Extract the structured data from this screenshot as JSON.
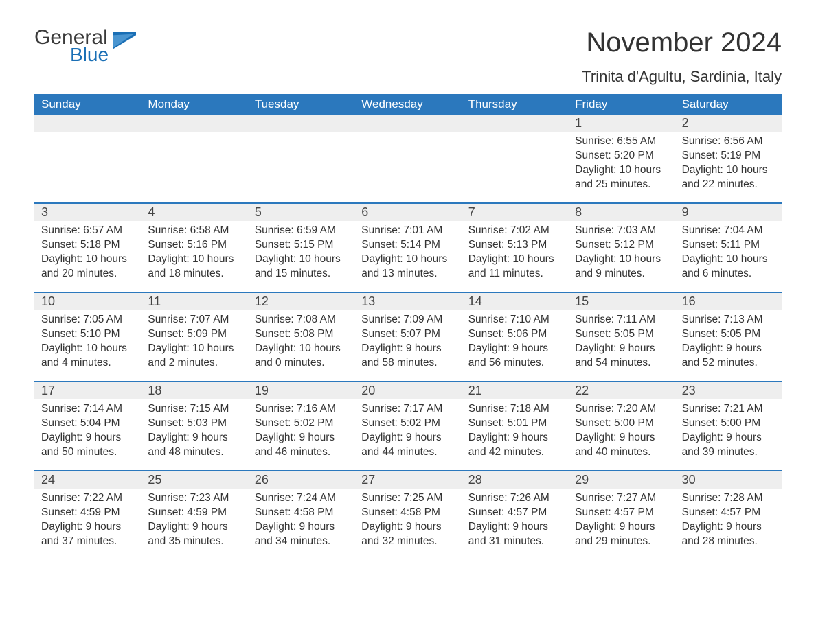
{
  "logo": {
    "text_general": "General",
    "text_blue": "Blue",
    "flag_color": "#1a6fb5"
  },
  "title": "November 2024",
  "location": "Trinita d'Agultu, Sardinia, Italy",
  "colors": {
    "header_bg": "#2b78bd",
    "header_text": "#ffffff",
    "daynum_bg": "#eeeeee",
    "border": "#2b78bd",
    "body_text": "#333333"
  },
  "fonts": {
    "title_size_pt": 30,
    "location_size_pt": 17,
    "dow_size_pt": 13,
    "daynum_size_pt": 14,
    "body_size_pt": 12
  },
  "days_of_week": [
    "Sunday",
    "Monday",
    "Tuesday",
    "Wednesday",
    "Thursday",
    "Friday",
    "Saturday"
  ],
  "weeks": [
    [
      null,
      null,
      null,
      null,
      null,
      {
        "num": "1",
        "sunrise": "6:55 AM",
        "sunset": "5:20 PM",
        "daylight": "10 hours and 25 minutes."
      },
      {
        "num": "2",
        "sunrise": "6:56 AM",
        "sunset": "5:19 PM",
        "daylight": "10 hours and 22 minutes."
      }
    ],
    [
      {
        "num": "3",
        "sunrise": "6:57 AM",
        "sunset": "5:18 PM",
        "daylight": "10 hours and 20 minutes."
      },
      {
        "num": "4",
        "sunrise": "6:58 AM",
        "sunset": "5:16 PM",
        "daylight": "10 hours and 18 minutes."
      },
      {
        "num": "5",
        "sunrise": "6:59 AM",
        "sunset": "5:15 PM",
        "daylight": "10 hours and 15 minutes."
      },
      {
        "num": "6",
        "sunrise": "7:01 AM",
        "sunset": "5:14 PM",
        "daylight": "10 hours and 13 minutes."
      },
      {
        "num": "7",
        "sunrise": "7:02 AM",
        "sunset": "5:13 PM",
        "daylight": "10 hours and 11 minutes."
      },
      {
        "num": "8",
        "sunrise": "7:03 AM",
        "sunset": "5:12 PM",
        "daylight": "10 hours and 9 minutes."
      },
      {
        "num": "9",
        "sunrise": "7:04 AM",
        "sunset": "5:11 PM",
        "daylight": "10 hours and 6 minutes."
      }
    ],
    [
      {
        "num": "10",
        "sunrise": "7:05 AM",
        "sunset": "5:10 PM",
        "daylight": "10 hours and 4 minutes."
      },
      {
        "num": "11",
        "sunrise": "7:07 AM",
        "sunset": "5:09 PM",
        "daylight": "10 hours and 2 minutes."
      },
      {
        "num": "12",
        "sunrise": "7:08 AM",
        "sunset": "5:08 PM",
        "daylight": "10 hours and 0 minutes."
      },
      {
        "num": "13",
        "sunrise": "7:09 AM",
        "sunset": "5:07 PM",
        "daylight": "9 hours and 58 minutes."
      },
      {
        "num": "14",
        "sunrise": "7:10 AM",
        "sunset": "5:06 PM",
        "daylight": "9 hours and 56 minutes."
      },
      {
        "num": "15",
        "sunrise": "7:11 AM",
        "sunset": "5:05 PM",
        "daylight": "9 hours and 54 minutes."
      },
      {
        "num": "16",
        "sunrise": "7:13 AM",
        "sunset": "5:05 PM",
        "daylight": "9 hours and 52 minutes."
      }
    ],
    [
      {
        "num": "17",
        "sunrise": "7:14 AM",
        "sunset": "5:04 PM",
        "daylight": "9 hours and 50 minutes."
      },
      {
        "num": "18",
        "sunrise": "7:15 AM",
        "sunset": "5:03 PM",
        "daylight": "9 hours and 48 minutes."
      },
      {
        "num": "19",
        "sunrise": "7:16 AM",
        "sunset": "5:02 PM",
        "daylight": "9 hours and 46 minutes."
      },
      {
        "num": "20",
        "sunrise": "7:17 AM",
        "sunset": "5:02 PM",
        "daylight": "9 hours and 44 minutes."
      },
      {
        "num": "21",
        "sunrise": "7:18 AM",
        "sunset": "5:01 PM",
        "daylight": "9 hours and 42 minutes."
      },
      {
        "num": "22",
        "sunrise": "7:20 AM",
        "sunset": "5:00 PM",
        "daylight": "9 hours and 40 minutes."
      },
      {
        "num": "23",
        "sunrise": "7:21 AM",
        "sunset": "5:00 PM",
        "daylight": "9 hours and 39 minutes."
      }
    ],
    [
      {
        "num": "24",
        "sunrise": "7:22 AM",
        "sunset": "4:59 PM",
        "daylight": "9 hours and 37 minutes."
      },
      {
        "num": "25",
        "sunrise": "7:23 AM",
        "sunset": "4:59 PM",
        "daylight": "9 hours and 35 minutes."
      },
      {
        "num": "26",
        "sunrise": "7:24 AM",
        "sunset": "4:58 PM",
        "daylight": "9 hours and 34 minutes."
      },
      {
        "num": "27",
        "sunrise": "7:25 AM",
        "sunset": "4:58 PM",
        "daylight": "9 hours and 32 minutes."
      },
      {
        "num": "28",
        "sunrise": "7:26 AM",
        "sunset": "4:57 PM",
        "daylight": "9 hours and 31 minutes."
      },
      {
        "num": "29",
        "sunrise": "7:27 AM",
        "sunset": "4:57 PM",
        "daylight": "9 hours and 29 minutes."
      },
      {
        "num": "30",
        "sunrise": "7:28 AM",
        "sunset": "4:57 PM",
        "daylight": "9 hours and 28 minutes."
      }
    ]
  ],
  "labels": {
    "sunrise": "Sunrise:",
    "sunset": "Sunset:",
    "daylight": "Daylight:"
  }
}
